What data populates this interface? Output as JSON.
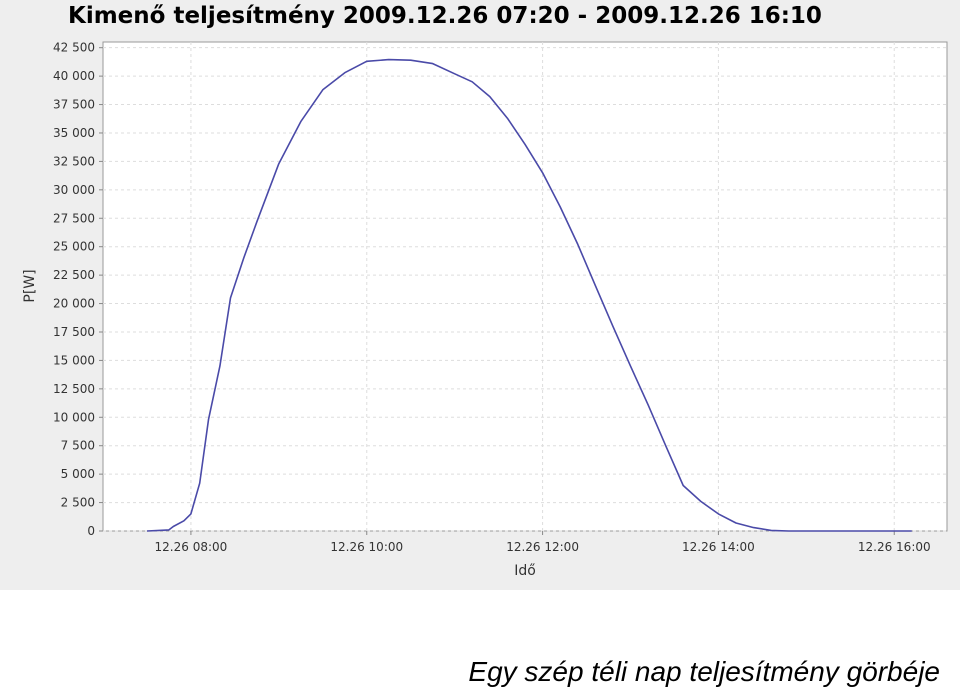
{
  "chart_data": {
    "type": "line",
    "title": "Kimenő teljesítmény 2009.12.26 07:20 - 2009.12.26 16:10",
    "xlabel": "Idő",
    "ylabel": "P[W]",
    "xlim_hours": [
      7.0,
      16.6
    ],
    "ylim": [
      0,
      43000
    ],
    "x_ticks": [
      {
        "value": 8,
        "label": "12.26 08:00"
      },
      {
        "value": 10,
        "label": "12.26 10:00"
      },
      {
        "value": 12,
        "label": "12.26 12:00"
      },
      {
        "value": 14,
        "label": "12.26 14:00"
      },
      {
        "value": 16,
        "label": "12.26 16:00"
      }
    ],
    "y_ticks": [
      {
        "value": 0,
        "label": "0"
      },
      {
        "value": 2500,
        "label": "2 500"
      },
      {
        "value": 5000,
        "label": "5 000"
      },
      {
        "value": 7500,
        "label": "7 500"
      },
      {
        "value": 10000,
        "label": "10 000"
      },
      {
        "value": 12500,
        "label": "12 500"
      },
      {
        "value": 15000,
        "label": "15 000"
      },
      {
        "value": 17500,
        "label": "17 500"
      },
      {
        "value": 20000,
        "label": "20 000"
      },
      {
        "value": 22500,
        "label": "22 500"
      },
      {
        "value": 25000,
        "label": "25 000"
      },
      {
        "value": 27500,
        "label": "27 500"
      },
      {
        "value": 30000,
        "label": "30 000"
      },
      {
        "value": 32500,
        "label": "32 500"
      },
      {
        "value": 35000,
        "label": "35 000"
      },
      {
        "value": 37500,
        "label": "37 500"
      },
      {
        "value": 40000,
        "label": "40 000"
      },
      {
        "value": 42500,
        "label": "42 500"
      }
    ],
    "grid": true,
    "series": [
      {
        "color": "#4a4aa8",
        "x": [
          7.5,
          7.75,
          7.8,
          7.92,
          8.0,
          8.1,
          8.2,
          8.33,
          8.45,
          8.6,
          8.75,
          9.0,
          9.25,
          9.5,
          9.75,
          10.0,
          10.25,
          10.5,
          10.75,
          11.0,
          11.2,
          11.4,
          11.6,
          11.8,
          12.0,
          12.2,
          12.4,
          12.6,
          12.8,
          13.0,
          13.2,
          13.4,
          13.6,
          13.8,
          14.0,
          14.2,
          14.4,
          14.6,
          14.8,
          15.0,
          15.1,
          15.2,
          15.3,
          15.4,
          15.6,
          15.8,
          16.0,
          16.2
        ],
        "y": [
          0,
          100,
          400,
          900,
          1500,
          4200,
          9800,
          14500,
          20500,
          24000,
          27200,
          32300,
          36000,
          38800,
          40300,
          41300,
          41450,
          41400,
          41100,
          40200,
          39500,
          38200,
          36300,
          34000,
          31500,
          28500,
          25200,
          21600,
          18000,
          14500,
          11100,
          7500,
          4000,
          2600,
          1500,
          700,
          300,
          50,
          0,
          0,
          0,
          0,
          0,
          0,
          0,
          0,
          0,
          0
        ]
      }
    ]
  },
  "caption": "Egy szép téli nap teljesítmény görbéje"
}
